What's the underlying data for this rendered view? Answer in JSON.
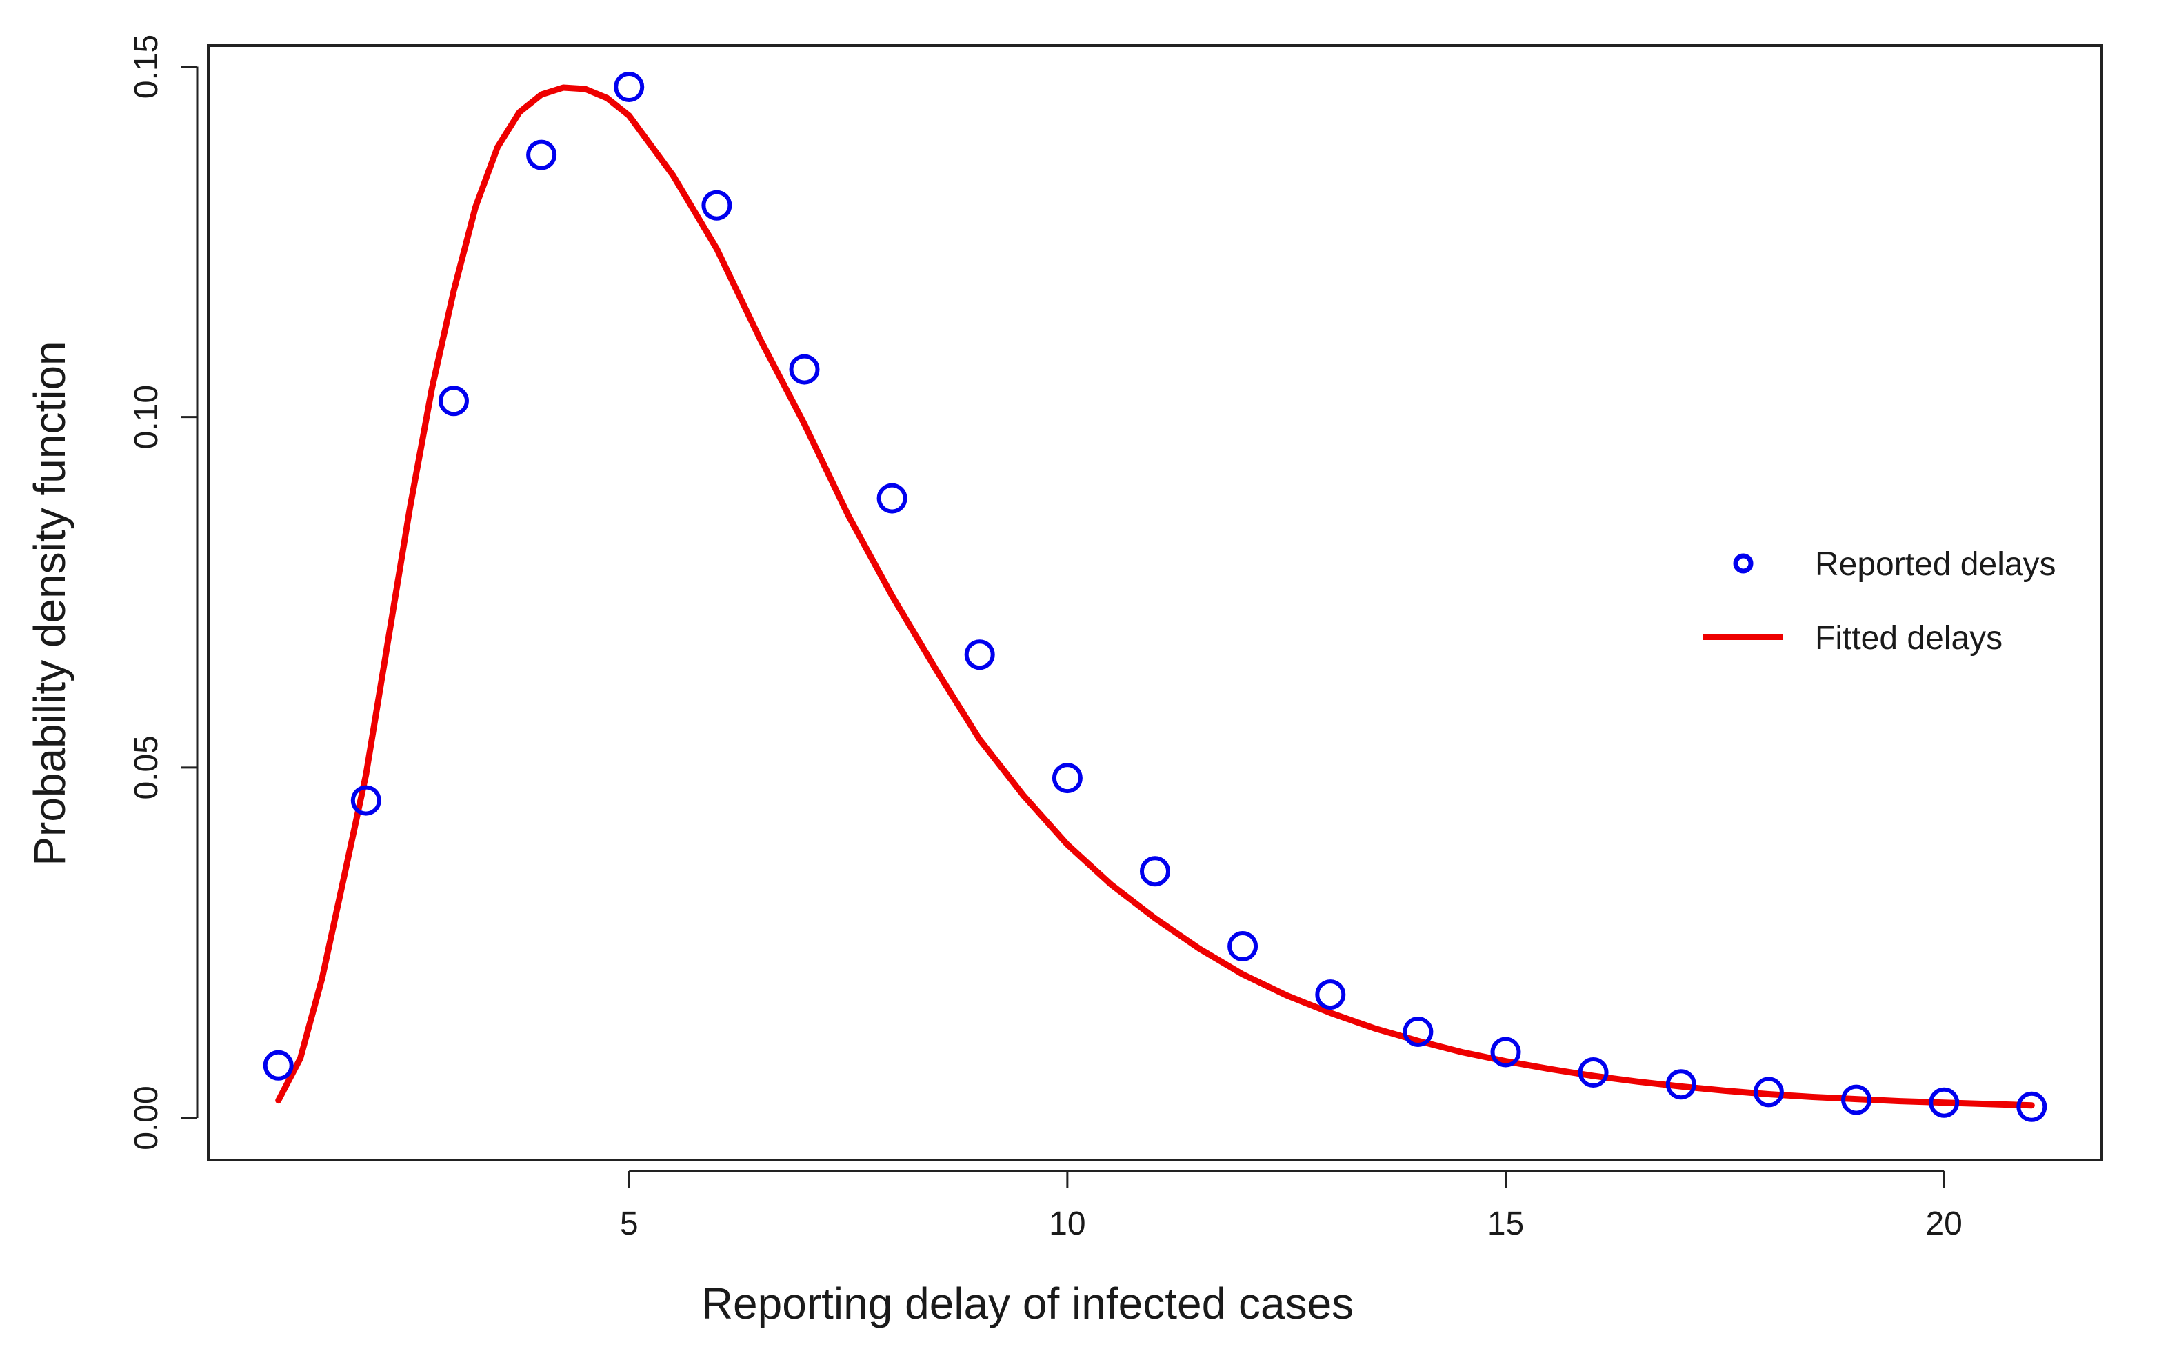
{
  "chart_data": {
    "type": "scatter",
    "title": "",
    "xlabel": "Reporting delay of infected cases",
    "ylabel": "Probability density function",
    "xlim": [
      0.2,
      21.8
    ],
    "ylim": [
      -0.006,
      0.153
    ],
    "xticks": [
      5,
      10,
      15,
      20
    ],
    "xtick_labels": [
      "5",
      "10",
      "15",
      "20"
    ],
    "yticks": [
      0.0,
      0.05,
      0.1,
      0.15
    ],
    "ytick_labels": [
      "0.00",
      "0.05",
      "0.10",
      "0.15"
    ],
    "grid": false,
    "legend": {
      "placement": "right",
      "entries": [
        {
          "label": "Reported delays",
          "marker": "circle",
          "color": "#0000ee"
        },
        {
          "label": "Fitted delays",
          "marker": "line",
          "color": "#ee0000"
        }
      ]
    },
    "series": [
      {
        "name": "Reported delays",
        "kind": "points",
        "color": "#0000ee",
        "x": [
          1,
          2,
          3,
          4,
          5,
          6,
          7,
          8,
          9,
          10,
          11,
          12,
          13,
          14,
          15,
          16,
          17,
          18,
          19,
          20,
          21
        ],
        "y": [
          0.0075,
          0.0453,
          0.1023,
          0.1374,
          0.1471,
          0.1302,
          0.1068,
          0.0884,
          0.0661,
          0.0485,
          0.0352,
          0.0245,
          0.0176,
          0.0123,
          0.0094,
          0.0065,
          0.0048,
          0.0037,
          0.0026,
          0.0022,
          0.0016
        ]
      },
      {
        "name": "Fitted delays",
        "kind": "line",
        "color": "#ee0000",
        "x": [
          1.0,
          1.25,
          1.5,
          1.75,
          2.0,
          2.25,
          2.5,
          2.75,
          3.0,
          3.25,
          3.5,
          3.75,
          4.0,
          4.25,
          4.5,
          4.75,
          5.0,
          5.5,
          6.0,
          6.5,
          7.0,
          7.5,
          8.0,
          8.5,
          9.0,
          9.5,
          10.0,
          10.5,
          11.0,
          11.5,
          12.0,
          12.5,
          13.0,
          13.5,
          14.0,
          14.5,
          15.0,
          15.5,
          16.0,
          16.5,
          17.0,
          17.5,
          18.0,
          18.5,
          19.0,
          19.5,
          20.0,
          20.5,
          21.0
        ],
        "y": [
          0.0025,
          0.0085,
          0.02,
          0.0345,
          0.049,
          0.068,
          0.087,
          0.104,
          0.118,
          0.13,
          0.1385,
          0.1435,
          0.146,
          0.147,
          0.1468,
          0.1455,
          0.143,
          0.1345,
          0.124,
          0.111,
          0.099,
          0.086,
          0.0745,
          0.064,
          0.054,
          0.046,
          0.039,
          0.0333,
          0.0285,
          0.0242,
          0.0205,
          0.0175,
          0.015,
          0.0128,
          0.011,
          0.0094,
          0.0081,
          0.007,
          0.006,
          0.0052,
          0.0045,
          0.0039,
          0.0034,
          0.003,
          0.0027,
          0.0024,
          0.0022,
          0.002,
          0.0018
        ]
      }
    ]
  }
}
